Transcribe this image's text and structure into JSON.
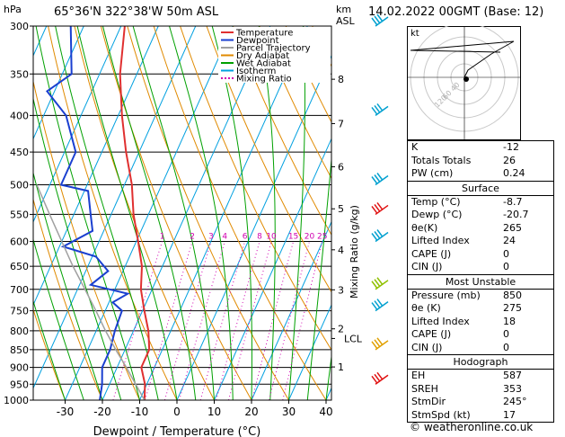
{
  "header": {
    "pressure_unit": "hPa",
    "location": "65°36'N  322°38'W  50m  ASL",
    "km_label": "km",
    "asl_label": "ASL",
    "datetime": "14.02.2022  00GMT  (Base: 12)"
  },
  "axes": {
    "xlabel": "Dewpoint / Temperature (°C)",
    "right_label": "Mixing Ratio (g/kg)",
    "lcl_label": "LCL",
    "pressure_ticks": [
      "300",
      "350",
      "400",
      "450",
      "500",
      "550",
      "600",
      "650",
      "700",
      "750",
      "800",
      "850",
      "900",
      "950",
      "1000"
    ],
    "temp_ticks": [
      "-30",
      "-20",
      "-10",
      "0",
      "10",
      "20",
      "30",
      "40"
    ],
    "km_ticks": [
      "1",
      "2",
      "3",
      "4",
      "5",
      "6",
      "7",
      "8"
    ],
    "mixing_ratio_ticks": [
      "1",
      "2",
      "3",
      "4",
      "6",
      "8",
      "10",
      "15",
      "20",
      "25"
    ]
  },
  "legend": [
    "Temperature",
    "Dewpoint",
    "Parcel Trajectory",
    "Dry Adiabat",
    "Wet Adiabat",
    "Isotherm",
    "Mixing Ratio"
  ],
  "colors": {
    "temperature": "#e03030",
    "dewpoint": "#1a3fd0",
    "parcel": "#a0a0a0",
    "dry_adiabat": "#e08a00",
    "wet_adiabat": "#00a000",
    "isotherm": "#00a0e0",
    "mixing_ratio": "#d000b0"
  },
  "hodograph": {
    "label": "kt",
    "rings": [
      "40",
      "60",
      "120"
    ]
  },
  "indices": [
    {
      "label": "K",
      "value": "-12"
    },
    {
      "label": "Totals Totals",
      "value": "26"
    },
    {
      "label": "PW (cm)",
      "value": "0.24"
    }
  ],
  "surface": {
    "title": "Surface",
    "rows": [
      {
        "label": "Temp (°C)",
        "value": "-8.7"
      },
      {
        "label": "Dewp (°C)",
        "value": "-20.7"
      },
      {
        "label": "θe(K)",
        "value": "265"
      },
      {
        "label": "Lifted Index",
        "value": "24"
      },
      {
        "label": "CAPE (J)",
        "value": "0"
      },
      {
        "label": "CIN (J)",
        "value": "0"
      }
    ]
  },
  "most_unstable": {
    "title": "Most Unstable",
    "rows": [
      {
        "label": "Pressure (mb)",
        "value": "850"
      },
      {
        "label": "θe (K)",
        "value": "275"
      },
      {
        "label": "Lifted Index",
        "value": "18"
      },
      {
        "label": "CAPE (J)",
        "value": "0"
      },
      {
        "label": "CIN (J)",
        "value": "0"
      }
    ]
  },
  "hodograph_table": {
    "title": "Hodograph",
    "rows": [
      {
        "label": "EH",
        "value": "587"
      },
      {
        "label": "SREH",
        "value": "353"
      },
      {
        "label": "StmDir",
        "value": "245°"
      },
      {
        "label": "StmSpd (kt)",
        "value": "17"
      }
    ]
  },
  "footer": "© weatheronline.co.uk",
  "chart_data": {
    "type": "line",
    "title": "",
    "xlabel": "Dewpoint / Temperature (°C)",
    "ylabel": "hPa",
    "xlim": [
      -35,
      40
    ],
    "ylim": [
      1000,
      300
    ],
    "y_scale": "log",
    "skew": true,
    "series": [
      {
        "name": "Temperature",
        "points": [
          [
            1000,
            -8.7
          ],
          [
            950,
            -10.5
          ],
          [
            900,
            -13.5
          ],
          [
            850,
            -13.5
          ],
          [
            800,
            -16
          ],
          [
            750,
            -19.5
          ],
          [
            700,
            -23
          ],
          [
            650,
            -25.5
          ],
          [
            600,
            -29.5
          ],
          [
            550,
            -34
          ],
          [
            500,
            -38
          ],
          [
            450,
            -43.5
          ],
          [
            400,
            -49
          ],
          [
            350,
            -54.5
          ],
          [
            300,
            -59
          ]
        ]
      },
      {
        "name": "Dewpoint",
        "points": [
          [
            1000,
            -20.7
          ],
          [
            950,
            -22
          ],
          [
            900,
            -24
          ],
          [
            850,
            -24
          ],
          [
            800,
            -25
          ],
          [
            750,
            -25.5
          ],
          [
            730,
            -29
          ],
          [
            710,
            -26
          ],
          [
            690,
            -37
          ],
          [
            660,
            -34
          ],
          [
            630,
            -39
          ],
          [
            610,
            -49
          ],
          [
            580,
            -43
          ],
          [
            550,
            -45.5
          ],
          [
            510,
            -49
          ],
          [
            500,
            -57
          ],
          [
            450,
            -57
          ],
          [
            400,
            -64
          ],
          [
            370,
            -72
          ],
          [
            350,
            -67.5
          ],
          [
            300,
            -73.5
          ]
        ]
      },
      {
        "name": "Parcel Trajectory",
        "points": [
          [
            1000,
            -8.7
          ],
          [
            950,
            -13
          ],
          [
            900,
            -17.5
          ],
          [
            850,
            -22.5
          ],
          [
            800,
            -27.5
          ],
          [
            750,
            -32.5
          ],
          [
            700,
            -38
          ],
          [
            650,
            -44
          ],
          [
            600,
            -50
          ],
          [
            550,
            -56.5
          ],
          [
            500,
            -63.5
          ]
        ]
      }
    ],
    "wind_barbs_pressure": [
      300,
      400,
      500,
      550,
      600,
      700,
      750,
      850,
      950
    ]
  }
}
